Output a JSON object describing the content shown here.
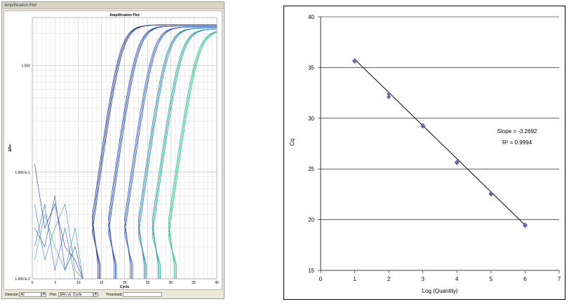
{
  "window": {
    "title": "Amplification Plot"
  },
  "amplification_plot": {
    "title": "Amplification Plot",
    "xlabel": "Cycle",
    "ylabel": "ΔRn",
    "x_ticks": [
      "0",
      "5",
      "10",
      "15",
      "20",
      "25",
      "30",
      "35",
      "40"
    ],
    "y_ticks": [
      "1.000 E-2",
      "1.000 E-1",
      "1.000"
    ],
    "curve_midpoints_cycle": [
      19,
      22.5,
      26,
      29,
      32,
      35.5
    ],
    "colors": [
      "#1f3b9b",
      "#2a4fc0",
      "#3a5ed0",
      "#2f8ab0",
      "#2aa5a0",
      "#2bbf8a"
    ]
  },
  "controls": {
    "detector_label": "Detector:",
    "detector_value": "All",
    "plot_label": "Plot:",
    "plot_value": "ΔRn vs. Cycle",
    "threshold_label": "Threshold:",
    "threshold_value": ""
  },
  "chart_data": {
    "type": "scatter",
    "title": "",
    "xlabel": "Log (Quantity)",
    "ylabel": "Cq",
    "xlim": [
      0,
      7
    ],
    "ylim": [
      15,
      40
    ],
    "x_ticks": [
      0,
      1,
      2,
      3,
      4,
      5,
      6,
      7
    ],
    "y_ticks": [
      15,
      20,
      25,
      30,
      35,
      40
    ],
    "grid": "horizontal",
    "series": [
      {
        "points": [
          [
            1,
            35.6
          ],
          [
            1,
            35.7
          ],
          [
            2,
            32.1
          ],
          [
            2,
            32.4
          ],
          [
            3,
            29.2
          ],
          [
            3,
            29.3
          ],
          [
            4,
            25.6
          ],
          [
            4,
            25.7
          ],
          [
            5,
            22.5
          ],
          [
            5,
            22.6
          ],
          [
            6,
            19.4
          ],
          [
            6,
            19.5
          ]
        ]
      }
    ],
    "fit_line": {
      "slope": -3.2692,
      "intercept": 39.08
    },
    "annotation": {
      "slope_text": "Slope = -3.2692",
      "r2_text": "R² = 0.9994"
    },
    "marker_color": "#6a6fb5"
  }
}
